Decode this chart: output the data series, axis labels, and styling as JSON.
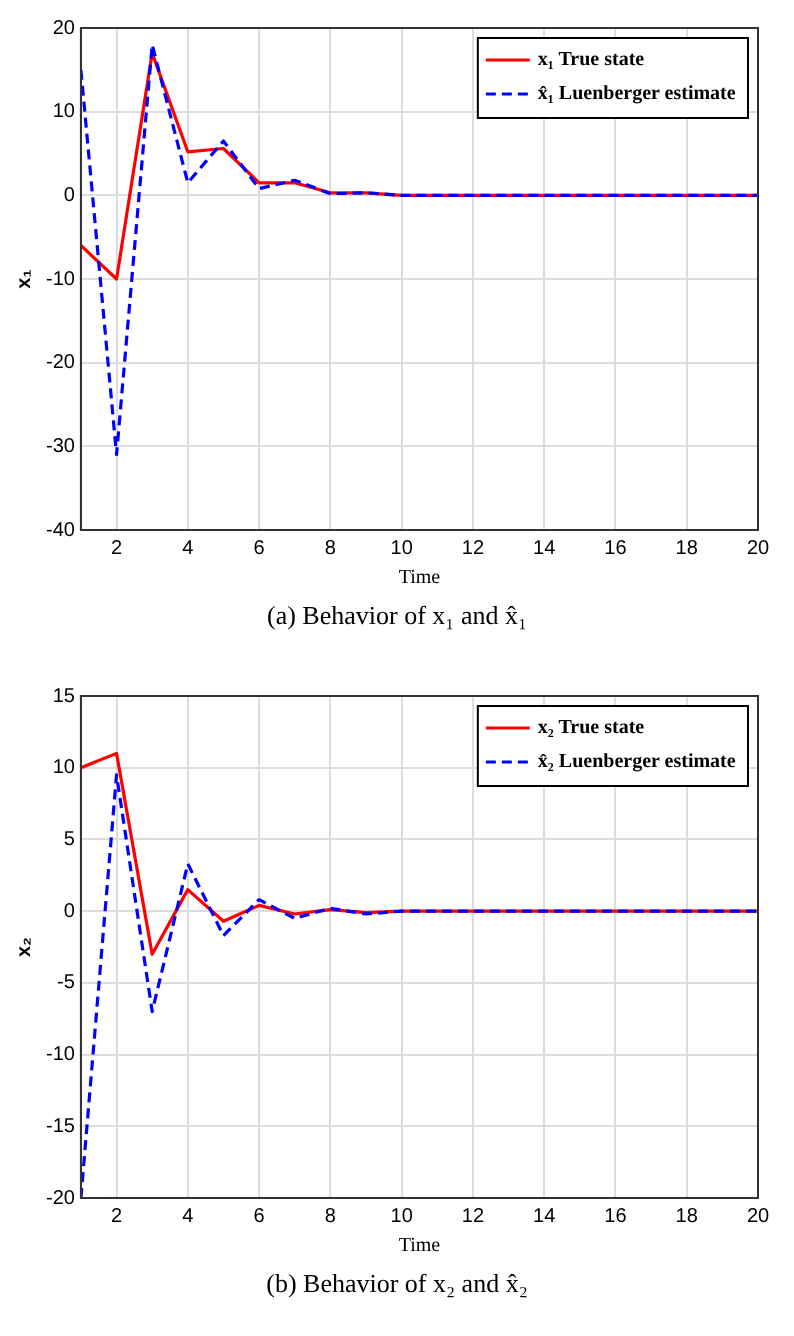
{
  "chart_data": [
    {
      "type": "line",
      "xlabel": "Time",
      "ylabel": "x₁",
      "annotations": [
        "(a) Behavior of x₁ and x̂₁"
      ],
      "x": [
        1,
        2,
        3,
        4,
        5,
        6,
        7,
        8,
        9,
        10,
        11,
        12,
        13,
        14,
        15,
        16,
        17,
        18,
        19,
        20
      ],
      "series": [
        {
          "name": "x₁ True state",
          "color": "#ff0000",
          "line_style": "solid",
          "values": [
            -6,
            -10,
            17,
            5.2,
            5.6,
            1.5,
            1.5,
            0.3,
            0.3,
            0,
            0,
            0,
            0,
            0,
            0,
            0,
            0,
            0,
            0,
            0
          ]
        },
        {
          "name": "x̂₁ Luenberger estimate",
          "color": "#0000ff",
          "line_style": "dashed",
          "values": [
            15,
            -31,
            18,
            1.5,
            6.5,
            0.8,
            1.8,
            0.2,
            0.3,
            0,
            0,
            0,
            0,
            0,
            0,
            0,
            0,
            0,
            0,
            0
          ]
        }
      ],
      "xlim": [
        1,
        20
      ],
      "xticks": [
        2,
        4,
        6,
        8,
        10,
        12,
        14,
        16,
        18,
        20
      ],
      "ylim": [
        -40,
        20
      ],
      "yticks": [
        -40,
        -30,
        -20,
        -10,
        0,
        10,
        20
      ],
      "grid": true,
      "legend": "top right",
      "marker": "none"
    },
    {
      "type": "line",
      "xlabel": "Time",
      "ylabel": "x₂",
      "annotations": [
        "(b) Behavior of x₂ and x̂₂"
      ],
      "x": [
        1,
        2,
        3,
        4,
        5,
        6,
        7,
        8,
        9,
        10,
        11,
        12,
        13,
        14,
        15,
        16,
        17,
        18,
        19,
        20
      ],
      "series": [
        {
          "name": "x₂ True state",
          "color": "#ff0000",
          "line_style": "solid",
          "values": [
            10,
            11,
            -3,
            1.5,
            -0.7,
            0.4,
            -0.2,
            0.1,
            -0.1,
            0,
            0,
            0,
            0,
            0,
            0,
            0,
            0,
            0,
            0,
            0
          ]
        },
        {
          "name": "x̂₂ Luenberger estimate",
          "color": "#0000ff",
          "line_style": "dashed",
          "values": [
            -20,
            9.5,
            -7,
            3.3,
            -1.7,
            0.8,
            -0.5,
            0.2,
            -0.2,
            0,
            0,
            0,
            0,
            0,
            0,
            0,
            0,
            0,
            0,
            0
          ]
        }
      ],
      "xlim": [
        1,
        20
      ],
      "xticks": [
        2,
        4,
        6,
        8,
        10,
        12,
        14,
        16,
        18,
        20
      ],
      "ylim": [
        -20,
        15
      ],
      "yticks": [
        -20,
        -15,
        -10,
        -5,
        0,
        5,
        10,
        15
      ],
      "grid": true,
      "legend": "top right",
      "marker": "none"
    }
  ]
}
